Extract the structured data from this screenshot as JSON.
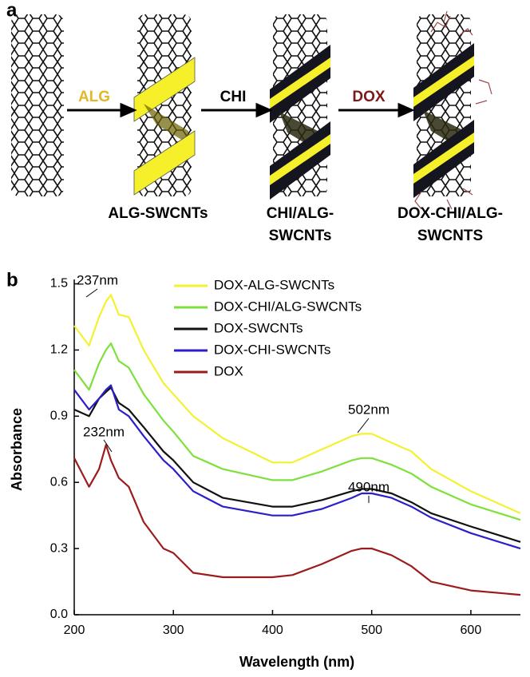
{
  "panel_a": {
    "label": "a",
    "steps": [
      "ALG",
      "CHI",
      "DOX"
    ],
    "products": [
      [
        "ALG-SWCNTs"
      ],
      [
        "CHI/ALG-",
        "SWCNTs"
      ],
      [
        "DOX-CHI/ALG-",
        "SWCNTS"
      ]
    ]
  },
  "chart_data": {
    "type": "line",
    "panel_label": "b",
    "x_label": "Wavelength (nm)",
    "y_label": "Absorbance",
    "x": [
      200,
      215,
      225,
      232,
      237,
      245,
      255,
      270,
      290,
      300,
      320,
      350,
      400,
      420,
      450,
      480,
      490,
      500,
      520,
      540,
      560,
      600,
      650
    ],
    "series": [
      {
        "name": "DOX-ALG-SWCNTs",
        "color": "#f2f230",
        "values": [
          1.31,
          1.22,
          1.35,
          1.42,
          1.45,
          1.36,
          1.35,
          1.2,
          1.05,
          1.0,
          0.9,
          0.8,
          0.69,
          0.69,
          0.75,
          0.81,
          0.82,
          0.82,
          0.78,
          0.74,
          0.66,
          0.56,
          0.46
        ]
      },
      {
        "name": "DOX-CHI/ALG-SWCNTs",
        "color": "#7ee03a",
        "values": [
          1.11,
          1.02,
          1.14,
          1.2,
          1.23,
          1.15,
          1.12,
          1.0,
          0.88,
          0.83,
          0.72,
          0.66,
          0.61,
          0.61,
          0.65,
          0.7,
          0.71,
          0.71,
          0.68,
          0.64,
          0.58,
          0.5,
          0.43
        ]
      },
      {
        "name": "DOX-SWCNTs",
        "color": "#111111",
        "values": [
          0.93,
          0.9,
          0.98,
          1.01,
          1.03,
          0.96,
          0.93,
          0.85,
          0.74,
          0.7,
          0.6,
          0.53,
          0.49,
          0.49,
          0.52,
          0.56,
          0.57,
          0.57,
          0.55,
          0.51,
          0.46,
          0.4,
          0.33
        ]
      },
      {
        "name": "DOX-CHI-SWCNTs",
        "color": "#2a1fc8",
        "values": [
          1.02,
          0.93,
          0.98,
          1.02,
          1.04,
          0.93,
          0.9,
          0.81,
          0.7,
          0.66,
          0.56,
          0.49,
          0.45,
          0.45,
          0.48,
          0.53,
          0.55,
          0.55,
          0.53,
          0.49,
          0.44,
          0.37,
          0.3
        ]
      },
      {
        "name": "DOX",
        "color": "#9b1c1c",
        "values": [
          0.71,
          0.58,
          0.66,
          0.77,
          0.7,
          0.62,
          0.58,
          0.42,
          0.3,
          0.28,
          0.19,
          0.17,
          0.17,
          0.18,
          0.23,
          0.29,
          0.3,
          0.3,
          0.27,
          0.22,
          0.15,
          0.11,
          0.09
        ]
      }
    ],
    "annotations": [
      "237nm",
      "502nm",
      "232nm",
      "490nm"
    ],
    "xlim": [
      200,
      650
    ],
    "xticks": [
      200,
      300,
      400,
      500,
      600
    ],
    "ylim": [
      0,
      1.52
    ],
    "yticks": [
      {
        "value": 0,
        "label": "0.0"
      },
      0.3,
      0.6,
      0.9,
      1.2,
      1.5
    ]
  }
}
